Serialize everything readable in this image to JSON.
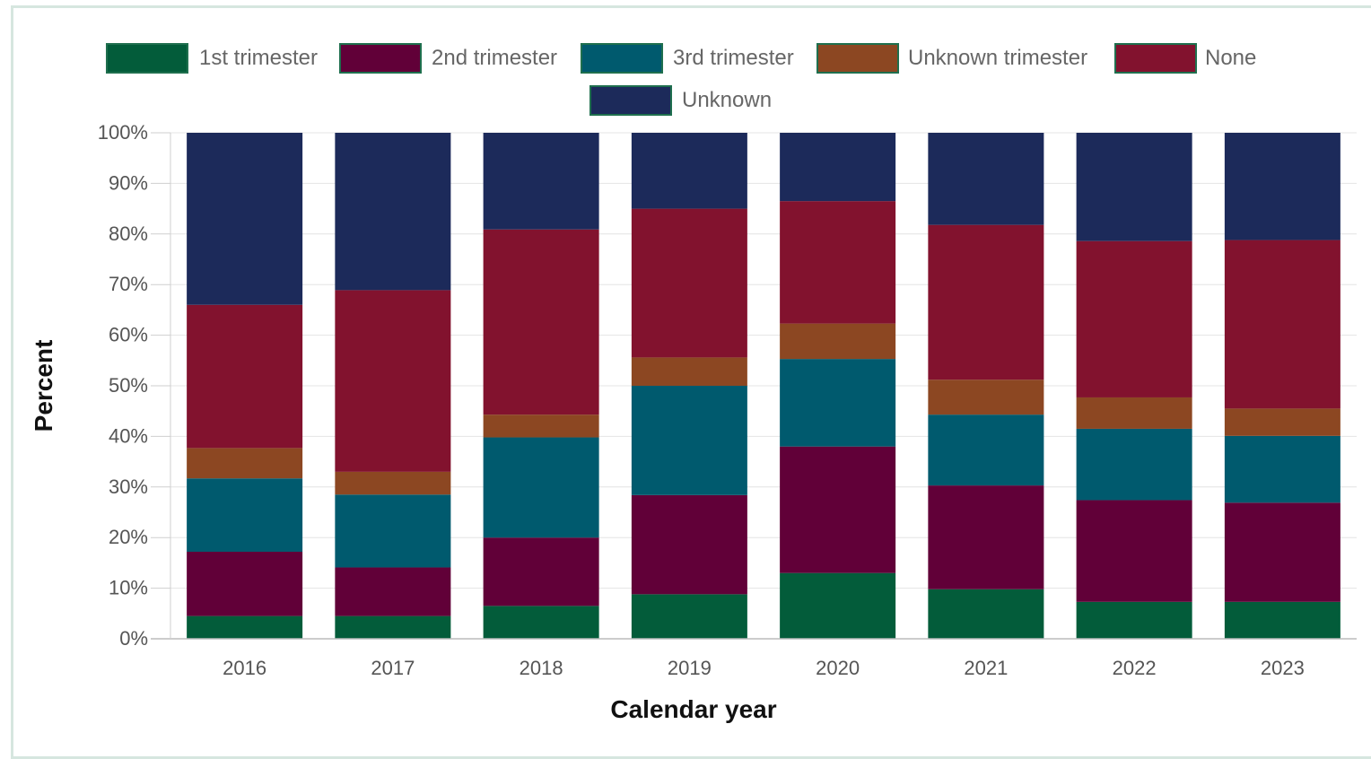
{
  "chart_data": {
    "type": "bar",
    "stacked": true,
    "categories": [
      "2016",
      "2017",
      "2018",
      "2019",
      "2020",
      "2021",
      "2022",
      "2023"
    ],
    "series": [
      {
        "name": "1st trimester",
        "color": "#035c3a",
        "values": [
          4.5,
          4.5,
          6.5,
          8.8,
          13.0,
          9.8,
          7.3,
          7.3
        ]
      },
      {
        "name": "2nd trimester",
        "color": "#610038",
        "values": [
          12.7,
          9.6,
          13.5,
          19.6,
          25.0,
          20.5,
          20.1,
          19.6
        ]
      },
      {
        "name": "3rd trimester",
        "color": "#005a6e",
        "values": [
          14.5,
          14.4,
          19.8,
          21.6,
          17.3,
          14.0,
          14.1,
          13.2
        ]
      },
      {
        "name": "Unknown trimester",
        "color": "#8c4722",
        "values": [
          6.0,
          4.5,
          4.5,
          5.6,
          7.0,
          6.9,
          6.2,
          5.4
        ]
      },
      {
        "name": "None",
        "color": "#82122e",
        "values": [
          28.3,
          35.9,
          36.6,
          29.4,
          24.2,
          30.6,
          30.9,
          33.3
        ]
      },
      {
        "name": "Unknown",
        "color": "#1c2a5a",
        "values": [
          34.0,
          31.1,
          19.1,
          15.0,
          13.5,
          18.2,
          21.4,
          21.2
        ]
      }
    ],
    "xlabel": "Calendar year",
    "ylabel": "Percent",
    "ylim": [
      0,
      100
    ],
    "y_ticks": [
      "0%",
      "10%",
      "20%",
      "30%",
      "40%",
      "50%",
      "60%",
      "70%",
      "80%",
      "90%",
      "100%"
    ],
    "grid": true,
    "legend_position": "top"
  }
}
